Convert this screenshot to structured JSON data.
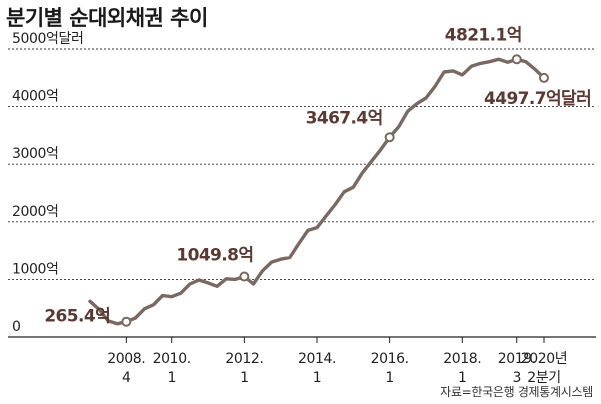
{
  "title": "분기별 순대외채권 추이",
  "source": "자료=한국은행 경제통계시스템",
  "colors": {
    "line": "#7a6862",
    "grid": "#222222",
    "text": "#222222",
    "annotation": "#5a3a32"
  },
  "chart_data": {
    "type": "line",
    "title": "분기별 순대외채권 추이",
    "ylim": [
      0,
      5000
    ],
    "yticks": [
      {
        "value": 0,
        "label": "0"
      },
      {
        "value": 1000,
        "label": "1000억"
      },
      {
        "value": 2000,
        "label": "2000억"
      },
      {
        "value": 3000,
        "label": "3000억"
      },
      {
        "value": 4000,
        "label": "4000억"
      },
      {
        "value": 5000,
        "label": "5000억달러"
      }
    ],
    "xticks": [
      {
        "x": 2008.75,
        "year": "2008.",
        "q": "4"
      },
      {
        "x": 2010.0,
        "year": "2010.",
        "q": "1"
      },
      {
        "x": 2012.0,
        "year": "2012.",
        "q": "1"
      },
      {
        "x": 2014.0,
        "year": "2014.",
        "q": "1"
      },
      {
        "x": 2016.0,
        "year": "2016.",
        "q": "1"
      },
      {
        "x": 2018.0,
        "year": "2018.",
        "q": "1"
      },
      {
        "x": 2019.5,
        "year": "2019.",
        "q": "3"
      },
      {
        "x": 2020.25,
        "year": "2020년",
        "q": "2분기"
      }
    ],
    "xlim": [
      2007.5,
      2020.5
    ],
    "series": [
      {
        "x": [
          2007.75,
          2008.0,
          2008.25,
          2008.5,
          2008.75,
          2009.0,
          2009.25,
          2009.5,
          2009.75,
          2010.0,
          2010.25,
          2010.5,
          2010.75,
          2011.0,
          2011.25,
          2011.5,
          2011.75,
          2012.0,
          2012.25,
          2012.5,
          2012.75,
          2013.0,
          2013.25,
          2013.5,
          2013.75,
          2014.0,
          2014.25,
          2014.5,
          2014.75,
          2015.0,
          2015.25,
          2015.5,
          2015.75,
          2016.0,
          2016.25,
          2016.5,
          2016.75,
          2017.0,
          2017.25,
          2017.5,
          2017.75,
          2018.0,
          2018.25,
          2018.5,
          2018.75,
          2019.0,
          2019.25,
          2019.5,
          2019.75,
          2020.0,
          2020.25
        ],
        "values": [
          620,
          480,
          280,
          230,
          265.4,
          330,
          490,
          560,
          720,
          700,
          760,
          920,
          990,
          940,
          880,
          1010,
          1000,
          1049.8,
          920,
          1150,
          1300,
          1350,
          1380,
          1620,
          1850,
          1900,
          2100,
          2300,
          2520,
          2600,
          2850,
          3050,
          3250,
          3467.4,
          3650,
          3920,
          4050,
          4150,
          4350,
          4600,
          4620,
          4550,
          4700,
          4750,
          4780,
          4821.1,
          4770,
          4821.1,
          4780,
          4650,
          4497.7
        ]
      }
    ],
    "markers": [
      {
        "x": 2008.75,
        "y": 265.4
      },
      {
        "x": 2012.0,
        "y": 1049.8
      },
      {
        "x": 2016.0,
        "y": 3467.4
      },
      {
        "x": 2019.5,
        "y": 4821.1
      },
      {
        "x": 2020.25,
        "y": 4497.7
      }
    ],
    "annotations": [
      {
        "text": "265.4억",
        "x": 2008.75,
        "y": 265.4
      },
      {
        "text": "1049.8억",
        "x": 2012.0,
        "y": 1049.8
      },
      {
        "text": "3467.4억",
        "x": 2016.0,
        "y": 3467.4
      },
      {
        "text": "4821.1억",
        "x": 2019.5,
        "y": 4821.1
      },
      {
        "text": "4497.7억달러",
        "x": 2020.25,
        "y": 4497.7
      }
    ]
  }
}
